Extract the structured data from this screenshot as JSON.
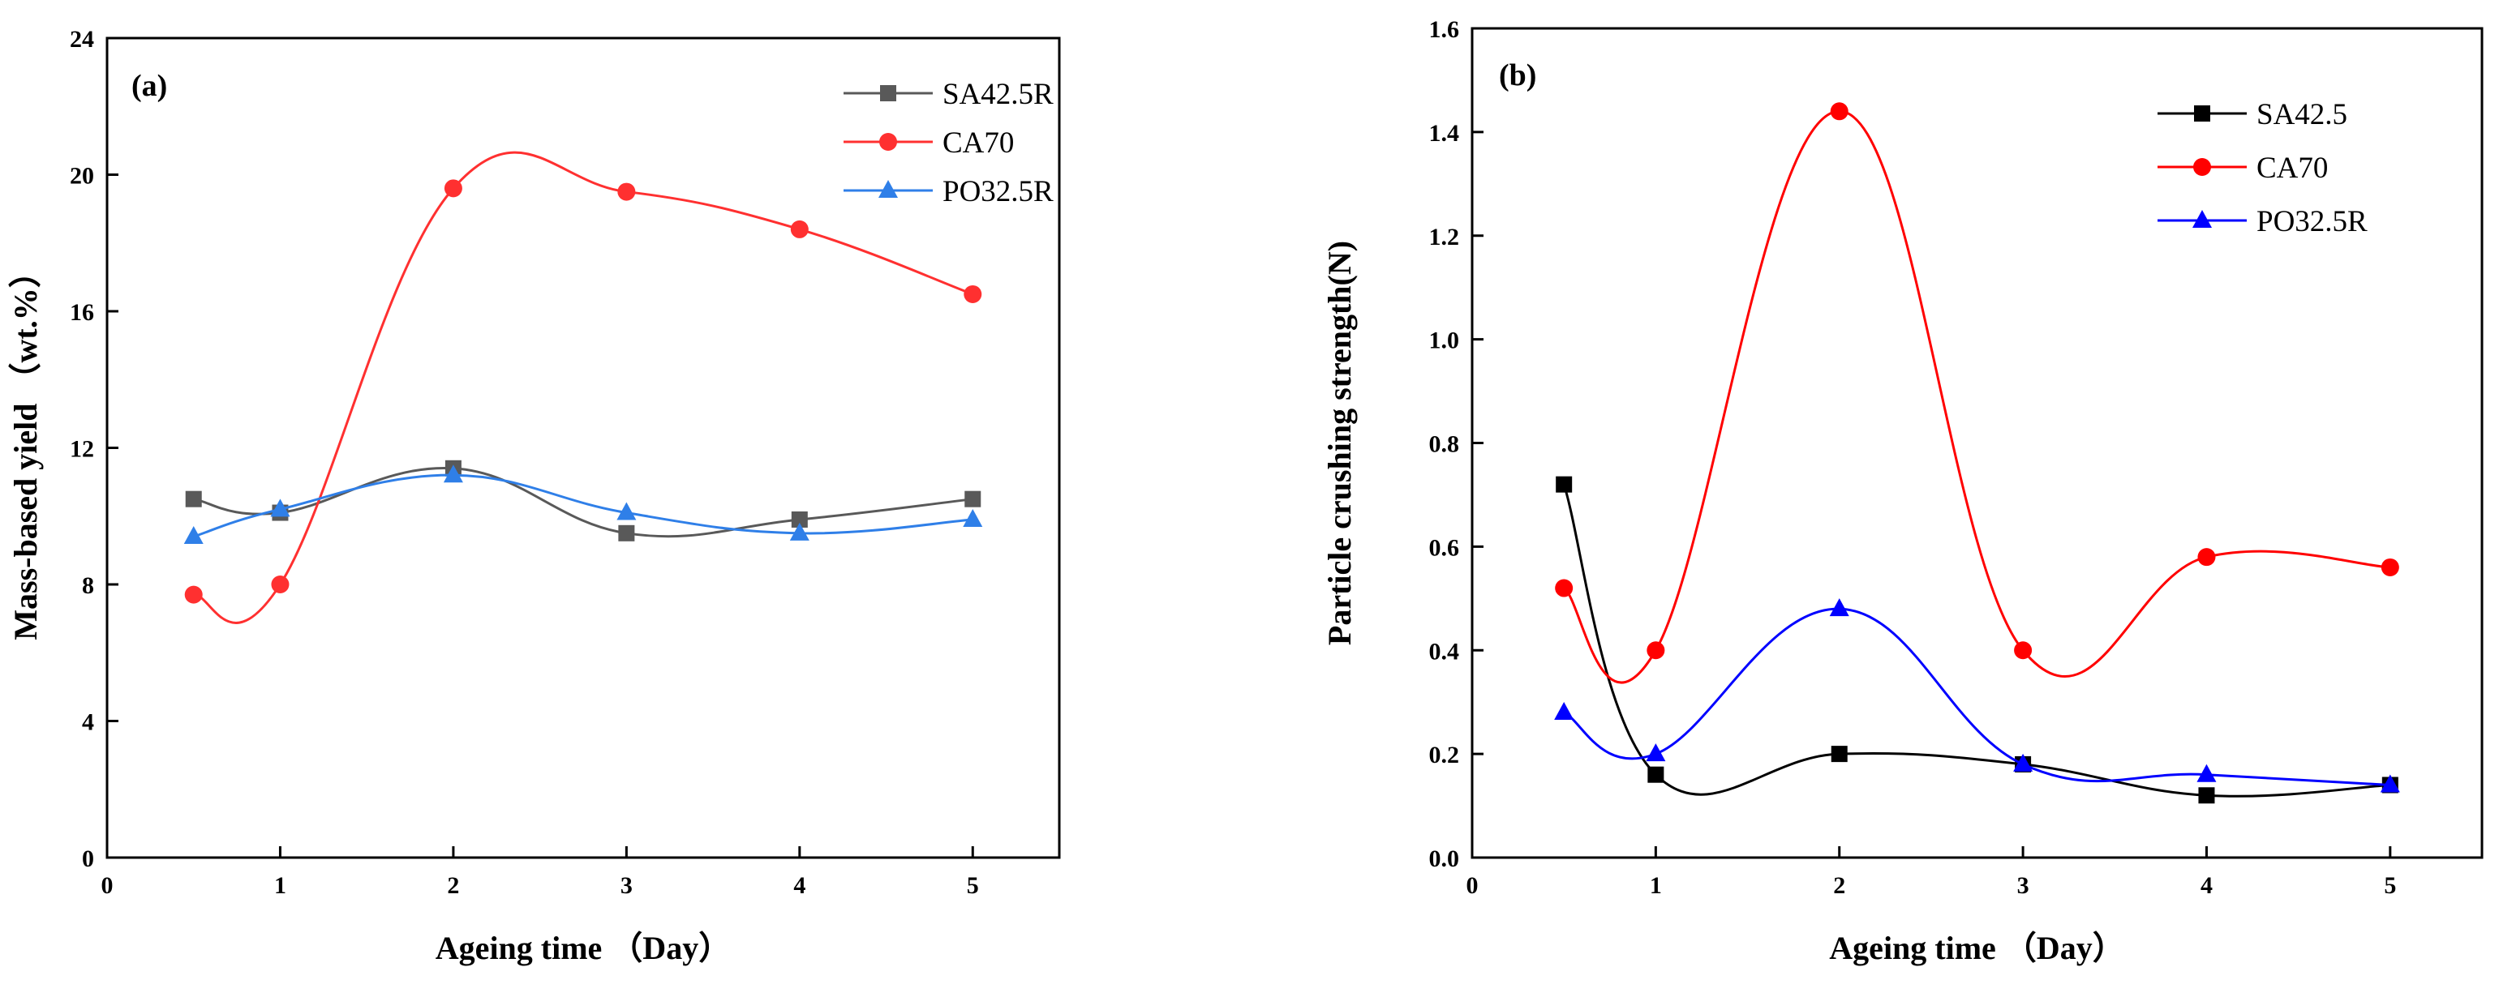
{
  "chart_data": [
    {
      "type": "line",
      "panel_label": "(a)",
      "title": "",
      "xlabel": "Ageing time （Day）",
      "ylabel": "Mass-based yield （wt.%）",
      "xlim": [
        0,
        5.5
      ],
      "ylim": [
        0,
        24
      ],
      "xticks": [
        0,
        1,
        2,
        3,
        4,
        5
      ],
      "yticks": [
        0,
        4,
        8,
        12,
        16,
        20,
        24
      ],
      "xtick_labels": [
        "0",
        "1",
        "2",
        "3",
        "4",
        "5"
      ],
      "ytick_labels": [
        "0",
        "4",
        "8",
        "12",
        "16",
        "20",
        "24"
      ],
      "grid": false,
      "legend_position": "top-right",
      "x": [
        0.5,
        1,
        2,
        3,
        4,
        5
      ],
      "series": [
        {
          "name": "SA42.5R",
          "color": "#595959",
          "marker": "square",
          "values": [
            10.5,
            10.1,
            11.4,
            9.5,
            9.9,
            10.5
          ]
        },
        {
          "name": "CA70",
          "color": "#ff3030",
          "marker": "circle",
          "values": [
            7.7,
            8.0,
            19.6,
            19.5,
            18.4,
            16.5
          ]
        },
        {
          "name": "PO32.5R",
          "color": "#2f7fe8",
          "marker": "triangle",
          "values": [
            9.4,
            10.2,
            11.2,
            10.1,
            9.5,
            9.9
          ]
        }
      ]
    },
    {
      "type": "line",
      "panel_label": "(b)",
      "title": "",
      "xlabel": "Ageing time （Day）",
      "ylabel": "Particle crushing strength(N)",
      "xlim": [
        0,
        5.5
      ],
      "ylim": [
        0,
        1.6
      ],
      "xticks": [
        0,
        1,
        2,
        3,
        4,
        5
      ],
      "yticks": [
        0,
        0.2,
        0.4,
        0.6,
        0.8,
        1.0,
        1.2,
        1.4,
        1.6
      ],
      "xtick_labels": [
        "0",
        "1",
        "2",
        "3",
        "4",
        "5"
      ],
      "ytick_labels": [
        "0.0",
        "0.2",
        "0.4",
        "0.6",
        "0.8",
        "1.0",
        "1.2",
        "1.4",
        "1.6"
      ],
      "grid": false,
      "legend_position": "top-right",
      "x": [
        0.5,
        1,
        2,
        3,
        4,
        5
      ],
      "series": [
        {
          "name": "SA42.5",
          "color": "#000000",
          "marker": "square",
          "values": [
            0.72,
            0.16,
            0.2,
            0.18,
            0.12,
            0.14
          ]
        },
        {
          "name": "CA70",
          "color": "#ff0000",
          "marker": "circle",
          "values": [
            0.52,
            0.4,
            1.44,
            0.4,
            0.58,
            0.56
          ]
        },
        {
          "name": "PO32.5R",
          "color": "#0000ff",
          "marker": "triangle",
          "values": [
            0.28,
            0.2,
            0.48,
            0.18,
            0.16,
            0.14
          ]
        }
      ]
    }
  ]
}
